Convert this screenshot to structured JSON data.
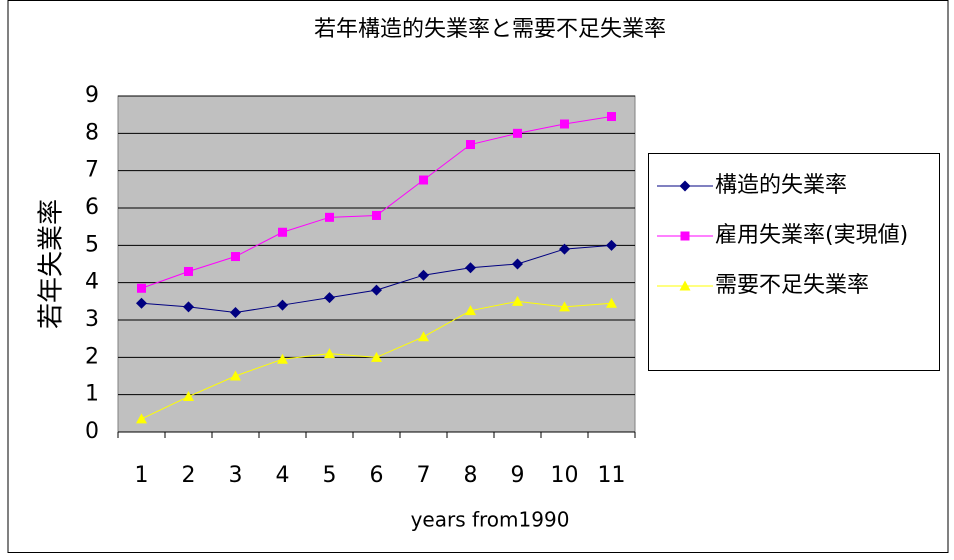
{
  "chart_data": {
    "type": "line",
    "title": "若年構造的失業率と需要不足失業率",
    "y_label": "若年失業率",
    "x_label": "years from1990",
    "categories": [
      1,
      2,
      3,
      4,
      5,
      6,
      7,
      8,
      9,
      10,
      11
    ],
    "series": [
      {
        "name": "構造的失業率",
        "color": "#000080",
        "marker": "diamond",
        "values": [
          3.45,
          3.35,
          3.2,
          3.4,
          3.6,
          3.8,
          4.2,
          4.4,
          4.5,
          4.9,
          5.0
        ]
      },
      {
        "name": "雇用失業率(実現値)",
        "color": "#ff00ff",
        "marker": "square",
        "values": [
          3.85,
          4.3,
          4.7,
          5.35,
          5.75,
          5.8,
          6.75,
          7.7,
          8.0,
          8.25,
          8.45
        ]
      },
      {
        "name": "需要不足失業率",
        "color": "#ffff00",
        "marker": "triangle",
        "values": [
          0.35,
          0.95,
          1.5,
          1.95,
          2.1,
          2.0,
          2.55,
          3.25,
          3.5,
          3.35,
          3.45
        ]
      }
    ],
    "ylim": [
      0,
      9
    ],
    "yticks": [
      0,
      1,
      2,
      3,
      4,
      5,
      6,
      7,
      8,
      9
    ],
    "grid": true,
    "legend": "right"
  }
}
